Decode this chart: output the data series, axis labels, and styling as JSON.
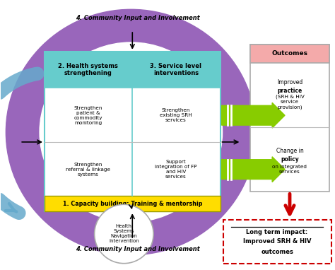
{
  "community_text_top": "4. Community Input and Involvement",
  "community_text_bottom": "4. Community Input and Involvement",
  "box2_title": "2. Health systems\nstrengthening",
  "box3_title": "3. Service level\ninterventions",
  "box2_item1": "Strengthen\npatient &\ncommodity\nmonitoring",
  "box2_item2": "Strengthen\nreferral & linkage\nsystems",
  "box3_item1": "Strengthen\nexisting SRH\nservices",
  "box3_item2": "Support\nintegration of FP\nand HIV\nservices",
  "box1_text": "1. Capacity building: Training & mentorship",
  "outcomes_title": "Outcomes",
  "outcomes_item1_pre": "Improved\n",
  "outcomes_item1_bold": "practice",
  "outcomes_item1_post": "\n(SRH & HIV\nservice\nprovision)",
  "outcomes_item2_pre": "Change in\n",
  "outcomes_item2_bold": "policy",
  "outcomes_item2_post": " on\nintegrated\nservices",
  "long_term_line1": "Long term impact:",
  "long_term_line2": "Improved SRH & HIV",
  "long_term_line3": "outcomes",
  "hsn_text": "Health\nSystems\nNavigation\nintervention",
  "purple_color": "#9966bb",
  "teal_header": "#66cccc",
  "yellow_bar": "#ffdd00",
  "green_arrow": "#88cc00",
  "red_color": "#cc0000",
  "blue_arrow": "#66aacc",
  "outcomes_header_bg": "#f4aaaa",
  "long_term_border": "#cc0000",
  "fig_w": 4.74,
  "fig_h": 3.82,
  "dpi": 100
}
